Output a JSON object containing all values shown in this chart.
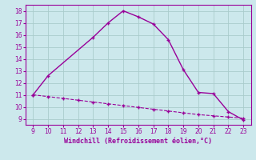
{
  "xlabel": "Windchill (Refroidissement éolien,°C)",
  "line1_x": [
    9,
    10,
    13,
    14,
    15,
    16,
    17,
    18,
    19,
    20,
    21,
    22,
    23
  ],
  "line1_y": [
    11.0,
    12.6,
    15.8,
    17.0,
    18.0,
    17.5,
    16.9,
    15.6,
    13.1,
    11.2,
    11.1,
    9.6,
    8.9
  ],
  "line2_x": [
    9,
    10,
    11,
    12,
    13,
    14,
    15,
    16,
    17,
    18,
    19,
    20,
    21,
    22,
    23
  ],
  "line2_y": [
    11.0,
    10.85,
    10.7,
    10.55,
    10.4,
    10.25,
    10.1,
    9.95,
    9.8,
    9.65,
    9.5,
    9.35,
    9.25,
    9.15,
    9.05
  ],
  "line_color": "#990099",
  "bg_color": "#cce8ec",
  "grid_color": "#aacccc",
  "tick_color": "#990099",
  "label_color": "#990099",
  "xlim": [
    8.5,
    23.5
  ],
  "ylim": [
    8.5,
    18.5
  ],
  "xticks": [
    9,
    10,
    11,
    12,
    13,
    14,
    15,
    16,
    17,
    18,
    19,
    20,
    21,
    22,
    23
  ],
  "yticks": [
    9,
    10,
    11,
    12,
    13,
    14,
    15,
    16,
    17,
    18
  ],
  "line1_lw": 1.0,
  "line2_lw": 0.8,
  "marker_size": 3.5
}
